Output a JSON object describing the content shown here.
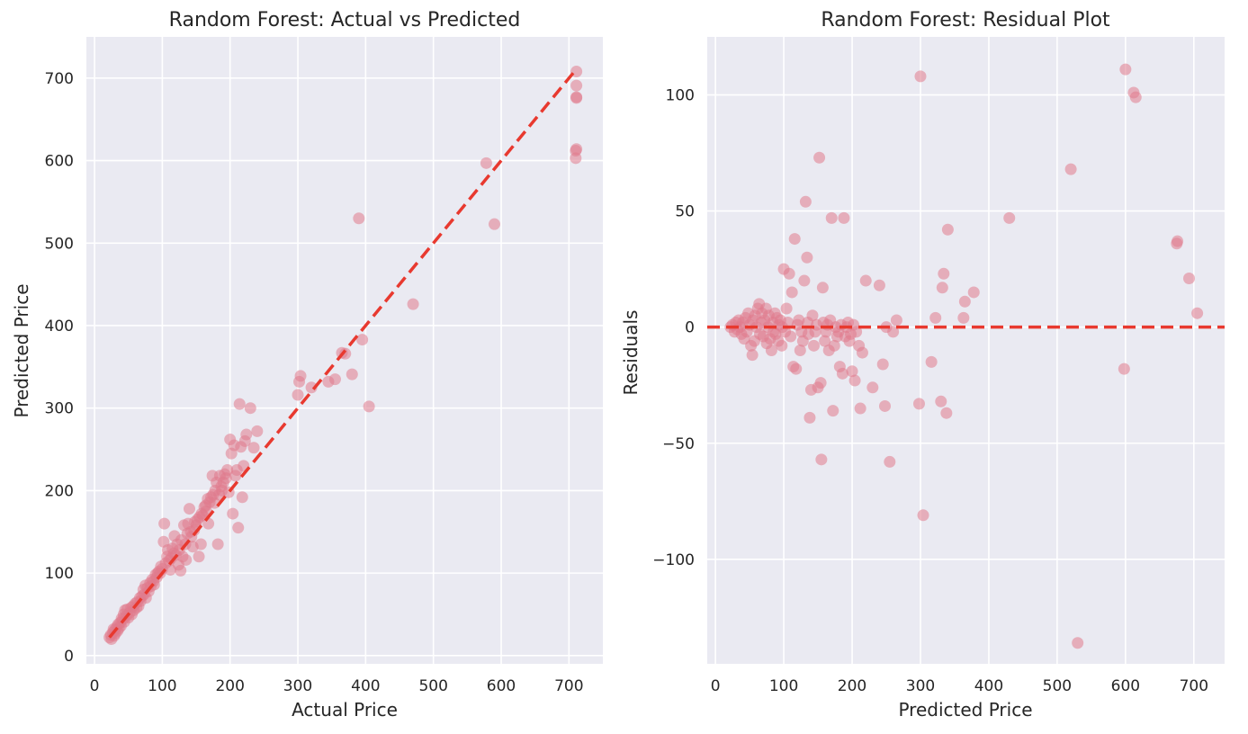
{
  "chart_data": [
    {
      "type": "scatter",
      "title": "Random Forest: Actual vs Predicted",
      "xlabel": "Actual Price",
      "ylabel": "Predicted Price",
      "xlim": [
        -12,
        750
      ],
      "ylim": [
        -10,
        750
      ],
      "xticks": [
        0,
        100,
        200,
        300,
        400,
        500,
        600,
        700
      ],
      "yticks": [
        0,
        100,
        200,
        300,
        400,
        500,
        600,
        700
      ],
      "grid": true,
      "reference_line": {
        "style": "dashed",
        "color": "#e8392f",
        "from": [
          22,
          22
        ],
        "to": [
          711,
          711
        ]
      },
      "point_color": "#e07a8c",
      "points": [
        [
          22,
          22
        ],
        [
          24,
          25
        ],
        [
          25,
          20
        ],
        [
          27,
          28
        ],
        [
          28,
          32
        ],
        [
          29,
          24
        ],
        [
          30,
          31
        ],
        [
          31,
          27
        ],
        [
          33,
          35
        ],
        [
          34,
          30
        ],
        [
          35,
          38
        ],
        [
          36,
          33
        ],
        [
          38,
          40
        ],
        [
          39,
          36
        ],
        [
          40,
          45
        ],
        [
          42,
          44
        ],
        [
          43,
          50
        ],
        [
          44,
          41
        ],
        [
          45,
          55
        ],
        [
          47,
          48
        ],
        [
          48,
          56
        ],
        [
          50,
          46
        ],
        [
          52,
          52
        ],
        [
          54,
          58
        ],
        [
          55,
          50
        ],
        [
          57,
          60
        ],
        [
          58,
          55
        ],
        [
          60,
          63
        ],
        [
          62,
          58
        ],
        [
          63,
          65
        ],
        [
          65,
          60
        ],
        [
          67,
          70
        ],
        [
          68,
          66
        ],
        [
          70,
          72
        ],
        [
          72,
          80
        ],
        [
          73,
          74
        ],
        [
          75,
          85
        ],
        [
          76,
          70
        ],
        [
          78,
          82
        ],
        [
          80,
          78
        ],
        [
          82,
          88
        ],
        [
          83,
          84
        ],
        [
          85,
          92
        ],
        [
          87,
          90
        ],
        [
          88,
          86
        ],
        [
          90,
          98
        ],
        [
          92,
          95
        ],
        [
          93,
          100
        ],
        [
          95,
          102
        ],
        [
          97,
          100
        ],
        [
          98,
          108
        ],
        [
          100,
          105
        ],
        [
          102,
          138
        ],
        [
          103,
          160
        ],
        [
          105,
          112
        ],
        [
          107,
          120
        ],
        [
          108,
          128
        ],
        [
          110,
          115
        ],
        [
          112,
          104
        ],
        [
          113,
          118
        ],
        [
          115,
          130
        ],
        [
          117,
          124
        ],
        [
          118,
          145
        ],
        [
          120,
          122
        ],
        [
          122,
          135
        ],
        [
          124,
          110
        ],
        [
          125,
          128
        ],
        [
          127,
          103
        ],
        [
          128,
          140
        ],
        [
          130,
          120
        ],
        [
          132,
          158
        ],
        [
          134,
          135
        ],
        [
          135,
          116
        ],
        [
          137,
          148
        ],
        [
          138,
          160
        ],
        [
          140,
          178
        ],
        [
          142,
          150
        ],
        [
          143,
          144
        ],
        [
          145,
          132
        ],
        [
          147,
          152
        ],
        [
          148,
          162
        ],
        [
          150,
          158
        ],
        [
          152,
          165
        ],
        [
          154,
          120
        ],
        [
          155,
          168
        ],
        [
          157,
          135
        ],
        [
          158,
          172
        ],
        [
          160,
          170
        ],
        [
          162,
          180
        ],
        [
          164,
          182
        ],
        [
          165,
          175
        ],
        [
          167,
          190
        ],
        [
          168,
          160
        ],
        [
          170,
          186
        ],
        [
          172,
          192
        ],
        [
          174,
          218
        ],
        [
          175,
          195
        ],
        [
          177,
          185
        ],
        [
          178,
          200
        ],
        [
          180,
          210
        ],
        [
          182,
          135
        ],
        [
          184,
          195
        ],
        [
          185,
          218
        ],
        [
          187,
          205
        ],
        [
          188,
          200
        ],
        [
          190,
          210
        ],
        [
          192,
          220
        ],
        [
          194,
          215
        ],
        [
          196,
          225
        ],
        [
          198,
          198
        ],
        [
          200,
          262
        ],
        [
          202,
          245
        ],
        [
          204,
          172
        ],
        [
          206,
          255
        ],
        [
          208,
          218
        ],
        [
          210,
          225
        ],
        [
          212,
          155
        ],
        [
          214,
          305
        ],
        [
          216,
          253
        ],
        [
          218,
          192
        ],
        [
          220,
          230
        ],
        [
          222,
          260
        ],
        [
          224,
          268
        ],
        [
          230,
          300
        ],
        [
          235,
          252
        ],
        [
          240,
          272
        ],
        [
          300,
          316
        ],
        [
          302,
          332
        ],
        [
          304,
          339
        ],
        [
          320,
          325
        ],
        [
          345,
          332
        ],
        [
          355,
          335
        ],
        [
          365,
          367
        ],
        [
          370,
          366
        ],
        [
          380,
          341
        ],
        [
          390,
          530
        ],
        [
          395,
          383
        ],
        [
          405,
          302
        ],
        [
          470,
          426
        ],
        [
          578,
          597
        ],
        [
          590,
          523
        ],
        [
          710,
          612
        ],
        [
          710,
          603
        ],
        [
          711,
          676
        ],
        [
          711,
          677
        ],
        [
          711,
          691
        ],
        [
          711,
          708
        ],
        [
          711,
          614
        ]
      ]
    },
    {
      "type": "scatter",
      "title": "Random Forest: Residual Plot",
      "xlabel": "Predicted Price",
      "ylabel": "Residuals",
      "xlim": [
        -12,
        745
      ],
      "ylim": [
        -145,
        125
      ],
      "xticks": [
        0,
        100,
        200,
        300,
        400,
        500,
        600,
        700
      ],
      "yticks": [
        -100,
        -50,
        0,
        50,
        100
      ],
      "grid": true,
      "reference_line": {
        "style": "dashed",
        "color": "#e8392f",
        "y": 0
      },
      "point_color": "#e07a8c",
      "points": [
        [
          22,
          0
        ],
        [
          25,
          1
        ],
        [
          28,
          -2
        ],
        [
          30,
          2
        ],
        [
          32,
          -1
        ],
        [
          34,
          3
        ],
        [
          36,
          0
        ],
        [
          38,
          -3
        ],
        [
          40,
          2
        ],
        [
          42,
          -5
        ],
        [
          44,
          4
        ],
        [
          46,
          -2
        ],
        [
          48,
          6
        ],
        [
          50,
          1
        ],
        [
          52,
          -8
        ],
        [
          54,
          -12
        ],
        [
          55,
          3
        ],
        [
          57,
          -6
        ],
        [
          58,
          5
        ],
        [
          60,
          0
        ],
        [
          62,
          8
        ],
        [
          64,
          10
        ],
        [
          65,
          -3
        ],
        [
          67,
          2
        ],
        [
          68,
          6
        ],
        [
          70,
          -4
        ],
        [
          72,
          3
        ],
        [
          74,
          8
        ],
        [
          75,
          -7
        ],
        [
          77,
          0
        ],
        [
          78,
          5
        ],
        [
          80,
          -5
        ],
        [
          82,
          -10
        ],
        [
          84,
          2
        ],
        [
          85,
          -2
        ],
        [
          87,
          6
        ],
        [
          88,
          -3
        ],
        [
          90,
          4
        ],
        [
          92,
          -6
        ],
        [
          93,
          1
        ],
        [
          95,
          3
        ],
        [
          97,
          -8
        ],
        [
          98,
          0
        ],
        [
          100,
          25
        ],
        [
          102,
          -2
        ],
        [
          104,
          8
        ],
        [
          106,
          2
        ],
        [
          108,
          23
        ],
        [
          110,
          -4
        ],
        [
          112,
          15
        ],
        [
          114,
          -17
        ],
        [
          116,
          38
        ],
        [
          118,
          -18
        ],
        [
          120,
          1
        ],
        [
          122,
          3
        ],
        [
          124,
          -10
        ],
        [
          126,
          -2
        ],
        [
          128,
          -6
        ],
        [
          130,
          20
        ],
        [
          132,
          54
        ],
        [
          134,
          30
        ],
        [
          135,
          2
        ],
        [
          136,
          -3
        ],
        [
          138,
          -39
        ],
        [
          140,
          -27
        ],
        [
          142,
          5
        ],
        [
          144,
          -8
        ],
        [
          146,
          -2
        ],
        [
          148,
          1
        ],
        [
          150,
          -26
        ],
        [
          152,
          73
        ],
        [
          154,
          -24
        ],
        [
          155,
          -57
        ],
        [
          157,
          17
        ],
        [
          158,
          2
        ],
        [
          160,
          -6
        ],
        [
          162,
          -2
        ],
        [
          164,
          1
        ],
        [
          166,
          -10
        ],
        [
          168,
          3
        ],
        [
          170,
          47
        ],
        [
          172,
          -36
        ],
        [
          174,
          -8
        ],
        [
          176,
          0
        ],
        [
          178,
          -4
        ],
        [
          180,
          -2
        ],
        [
          182,
          -17
        ],
        [
          184,
          1
        ],
        [
          186,
          -20
        ],
        [
          188,
          47
        ],
        [
          190,
          -4
        ],
        [
          192,
          0
        ],
        [
          194,
          2
        ],
        [
          196,
          -6
        ],
        [
          198,
          -3
        ],
        [
          200,
          -19
        ],
        [
          202,
          1
        ],
        [
          204,
          -23
        ],
        [
          206,
          -2
        ],
        [
          210,
          -8
        ],
        [
          212,
          -35
        ],
        [
          215,
          -11
        ],
        [
          220,
          20
        ],
        [
          230,
          -26
        ],
        [
          240,
          18
        ],
        [
          245,
          -16
        ],
        [
          248,
          -34
        ],
        [
          250,
          0
        ],
        [
          255,
          -58
        ],
        [
          260,
          -2
        ],
        [
          265,
          3
        ],
        [
          298,
          -33
        ],
        [
          300,
          108
        ],
        [
          304,
          -81
        ],
        [
          316,
          -15
        ],
        [
          322,
          4
        ],
        [
          330,
          -32
        ],
        [
          332,
          17
        ],
        [
          334,
          23
        ],
        [
          338,
          -37
        ],
        [
          340,
          42
        ],
        [
          363,
          4
        ],
        [
          365,
          11
        ],
        [
          378,
          15
        ],
        [
          430,
          47
        ],
        [
          520,
          68
        ],
        [
          530,
          -136
        ],
        [
          598,
          -18
        ],
        [
          600,
          111
        ],
        [
          612,
          101
        ],
        [
          615,
          99
        ],
        [
          675,
          36
        ],
        [
          676,
          37
        ],
        [
          693,
          21
        ],
        [
          705,
          6
        ]
      ]
    }
  ]
}
